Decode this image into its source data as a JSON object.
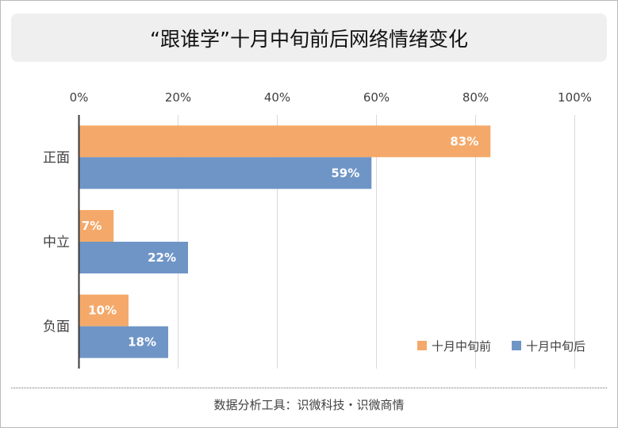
{
  "title": "“跟谁学”十月中旬前后网络情绪变化",
  "footer": "数据分析工具：识微科技・识微商情",
  "colors": {
    "before": "#f4a96a",
    "after": "#6f95c6"
  },
  "chart_data": {
    "type": "bar",
    "orientation": "horizontal",
    "categories": [
      "正面",
      "中立",
      "负面"
    ],
    "series": [
      {
        "name": "十月中旬前",
        "values": [
          83,
          7,
          10
        ],
        "labels": [
          "83%",
          "7%",
          "10%"
        ]
      },
      {
        "name": "十月中旬后",
        "values": [
          59,
          22,
          18
        ],
        "labels": [
          "59%",
          "22%",
          "18%"
        ]
      }
    ],
    "x_ticks": [
      "0%",
      "20%",
      "40%",
      "60%",
      "80%",
      "100%"
    ],
    "xlim": [
      0,
      100
    ],
    "grid": true,
    "legend": "bottom-right"
  }
}
